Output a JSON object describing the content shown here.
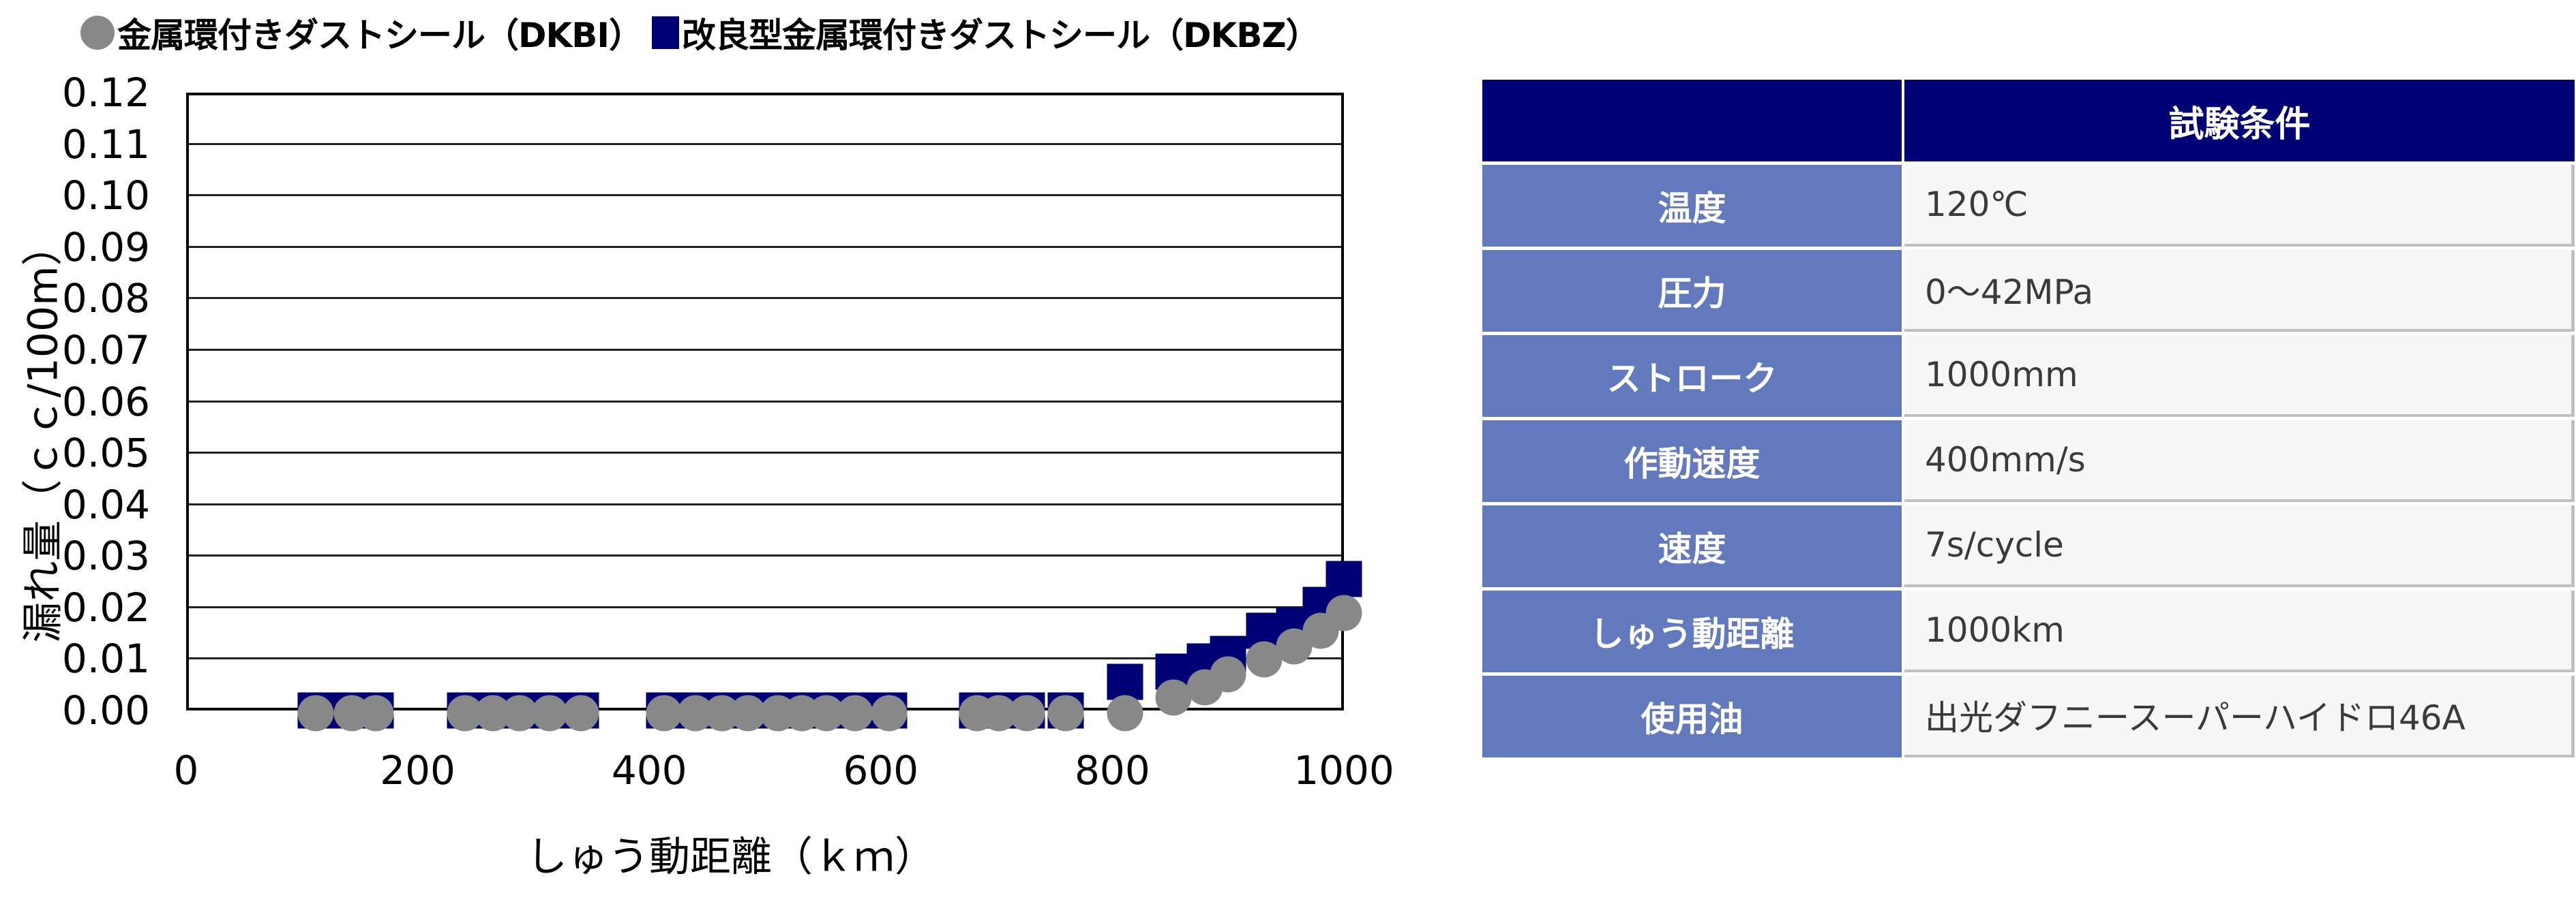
{
  "colors": {
    "dkbi": "#888888",
    "dkbz": "#000075",
    "table_header_bg": "#000075",
    "table_label_bg": "#6279bd",
    "table_value_bg": "#f7f7f7",
    "table_value_text": "#3a3a3a",
    "table_border": "#c0c0c0"
  },
  "legend": {
    "items": [
      {
        "marker": "circle",
        "label": "金属環付きダストシール（DKBI）"
      },
      {
        "marker": "square",
        "label": "改良型金属環付きダストシール（DKBZ）"
      }
    ]
  },
  "chart_data": {
    "type": "scatter",
    "title": "",
    "xlabel": "しゅう動距離（ｋｍ）",
    "ylabel": "漏れ量（ｃｃ/100m）",
    "xlim": [
      0,
      1000
    ],
    "ylim": [
      0,
      0.12
    ],
    "x_ticks": [
      "0",
      "200",
      "400",
      "600",
      "800",
      "1000"
    ],
    "y_ticks": [
      "0.00",
      "0.01",
      "0.02",
      "0.03",
      "0.04",
      "0.05",
      "0.06",
      "0.07",
      "0.08",
      "0.09",
      "0.10",
      "0.11",
      "0.12"
    ],
    "grid": "horizontal",
    "legend_position": "top",
    "series": [
      {
        "name": "金属環付きダストシール（DKBI）",
        "marker": "circle",
        "x": [
          112,
          143,
          164,
          241,
          265,
          288,
          314,
          341,
          413,
          440,
          463,
          485,
          511,
          532,
          553,
          578,
          607,
          683,
          702,
          726,
          760,
          811,
          853,
          880,
          900,
          931,
          957,
          980,
          1000
        ],
        "y": [
          0,
          0,
          0,
          0,
          0,
          0,
          0,
          0,
          0,
          0,
          0,
          0,
          0,
          0,
          0,
          0,
          0,
          0,
          0,
          0,
          0,
          0,
          0.003,
          0.005,
          0.0075,
          0.0105,
          0.013,
          0.016,
          0.0195
        ]
      },
      {
        "name": "改良型金属環付きダストシール（DKBZ）",
        "marker": "square",
        "x": [
          112,
          143,
          164,
          241,
          265,
          288,
          314,
          341,
          413,
          440,
          463,
          485,
          511,
          532,
          553,
          578,
          607,
          683,
          702,
          726,
          760,
          811,
          853,
          880,
          900,
          931,
          957,
          980,
          1000
        ],
        "y": [
          0,
          0,
          0,
          0,
          0,
          0,
          0,
          0,
          0,
          0,
          0,
          0,
          0,
          0,
          0,
          0,
          0,
          0,
          0,
          0,
          0,
          0.0055,
          0.0075,
          0.0095,
          0.011,
          0.0155,
          0.0165,
          0.0205,
          0.0255
        ]
      }
    ]
  },
  "table": {
    "header": {
      "left": "",
      "right": "試験条件"
    },
    "rows": [
      {
        "label": "温度",
        "value": "120℃"
      },
      {
        "label": "圧力",
        "value": "0～42MPa"
      },
      {
        "label": "ストローク",
        "value": "1000mm"
      },
      {
        "label": "作動速度",
        "value": "400mm/s"
      },
      {
        "label": "速度",
        "value": "7s/cycle"
      },
      {
        "label": "しゅう動距離",
        "value": "1000km"
      },
      {
        "label": "使用油",
        "value": "出光ダフニースーパーハイドロ46A"
      }
    ]
  }
}
